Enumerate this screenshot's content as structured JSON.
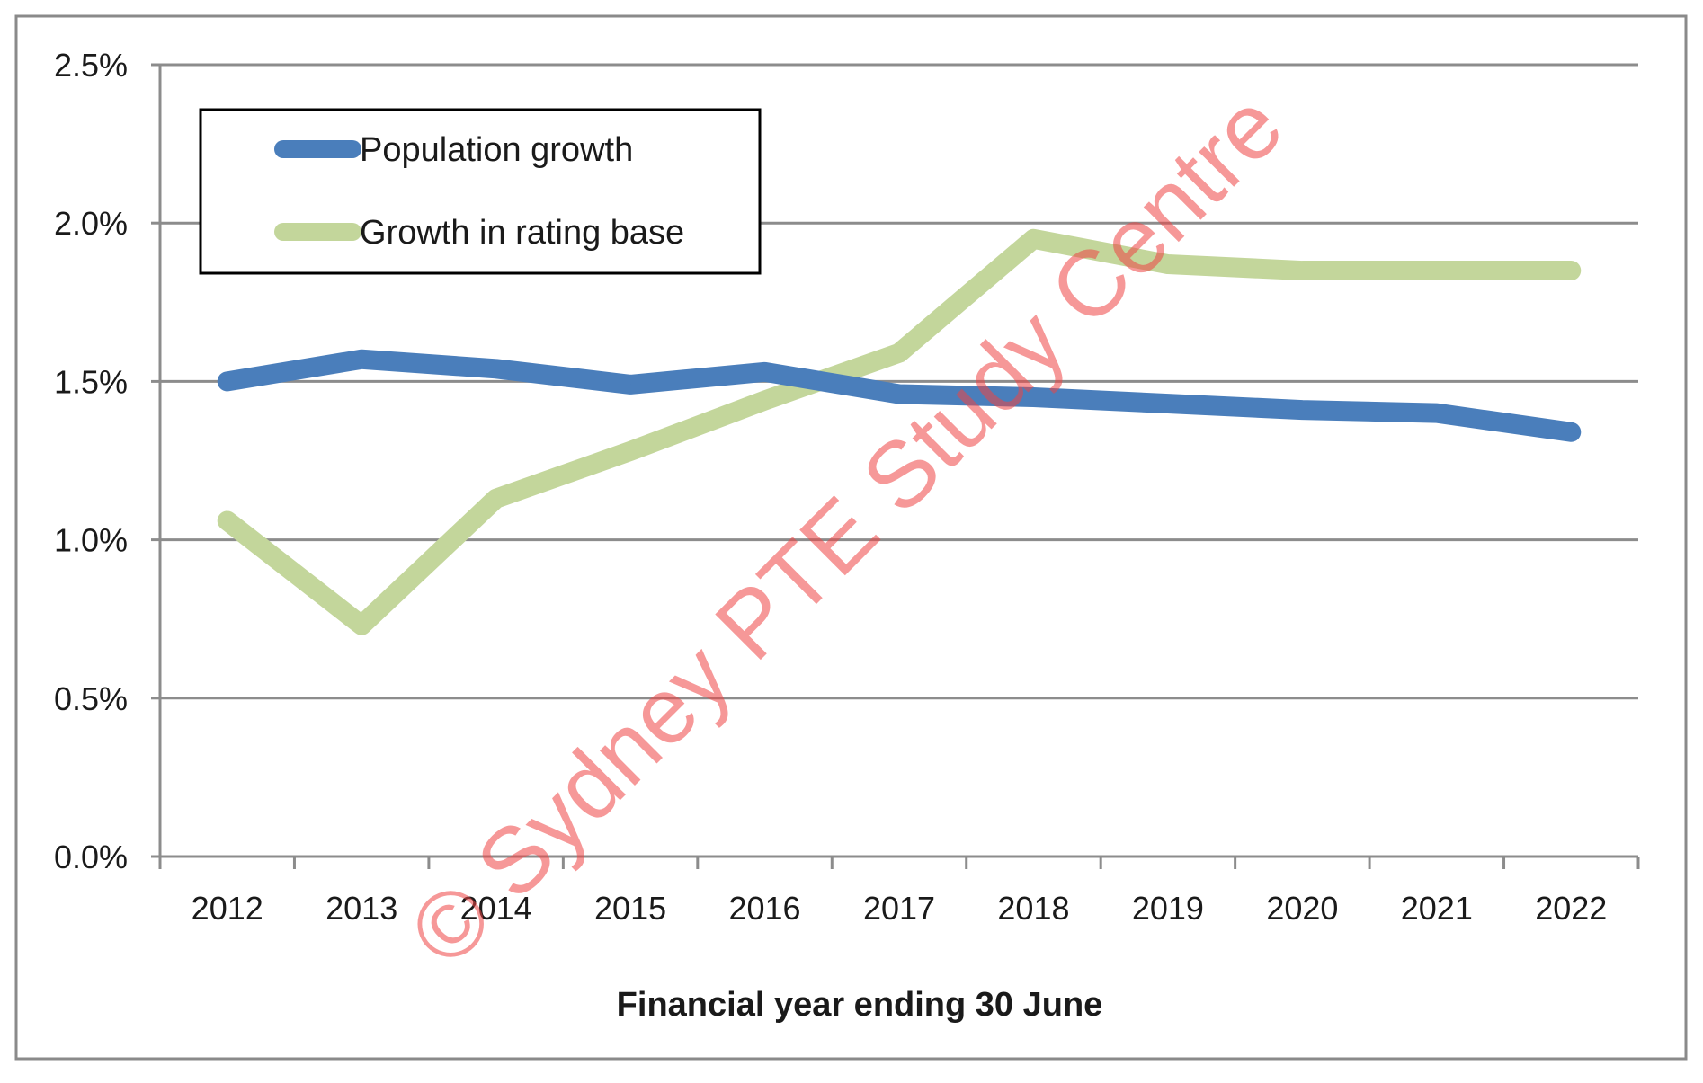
{
  "chart_data": {
    "type": "line",
    "title": "",
    "xlabel": "Financial year ending 30 June",
    "ylabel": "",
    "categories": [
      "2012",
      "2013",
      "2014",
      "2015",
      "2016",
      "2017",
      "2018",
      "2019",
      "2020",
      "2021",
      "2022"
    ],
    "y_tick_labels": [
      "0.0%",
      "0.5%",
      "1.0%",
      "1.5%",
      "2.0%",
      "2.5%"
    ],
    "ylim": [
      0,
      2.5
    ],
    "y_unit": "%",
    "grid": true,
    "legend_position": "top-left",
    "series": [
      {
        "name": "Population growth",
        "color": "#4a7ebb",
        "values": [
          1.5,
          1.57,
          1.54,
          1.49,
          1.53,
          1.46,
          1.45,
          1.43,
          1.41,
          1.4,
          1.34
        ]
      },
      {
        "name": "Growth in rating base",
        "color": "#c3d69b",
        "values": [
          1.06,
          0.73,
          1.13,
          1.28,
          1.44,
          1.59,
          1.95,
          1.87,
          1.85,
          1.85,
          1.85
        ]
      }
    ]
  },
  "watermark": {
    "text": "© Sydney PTE Study Centre",
    "color": "#ef4444"
  }
}
